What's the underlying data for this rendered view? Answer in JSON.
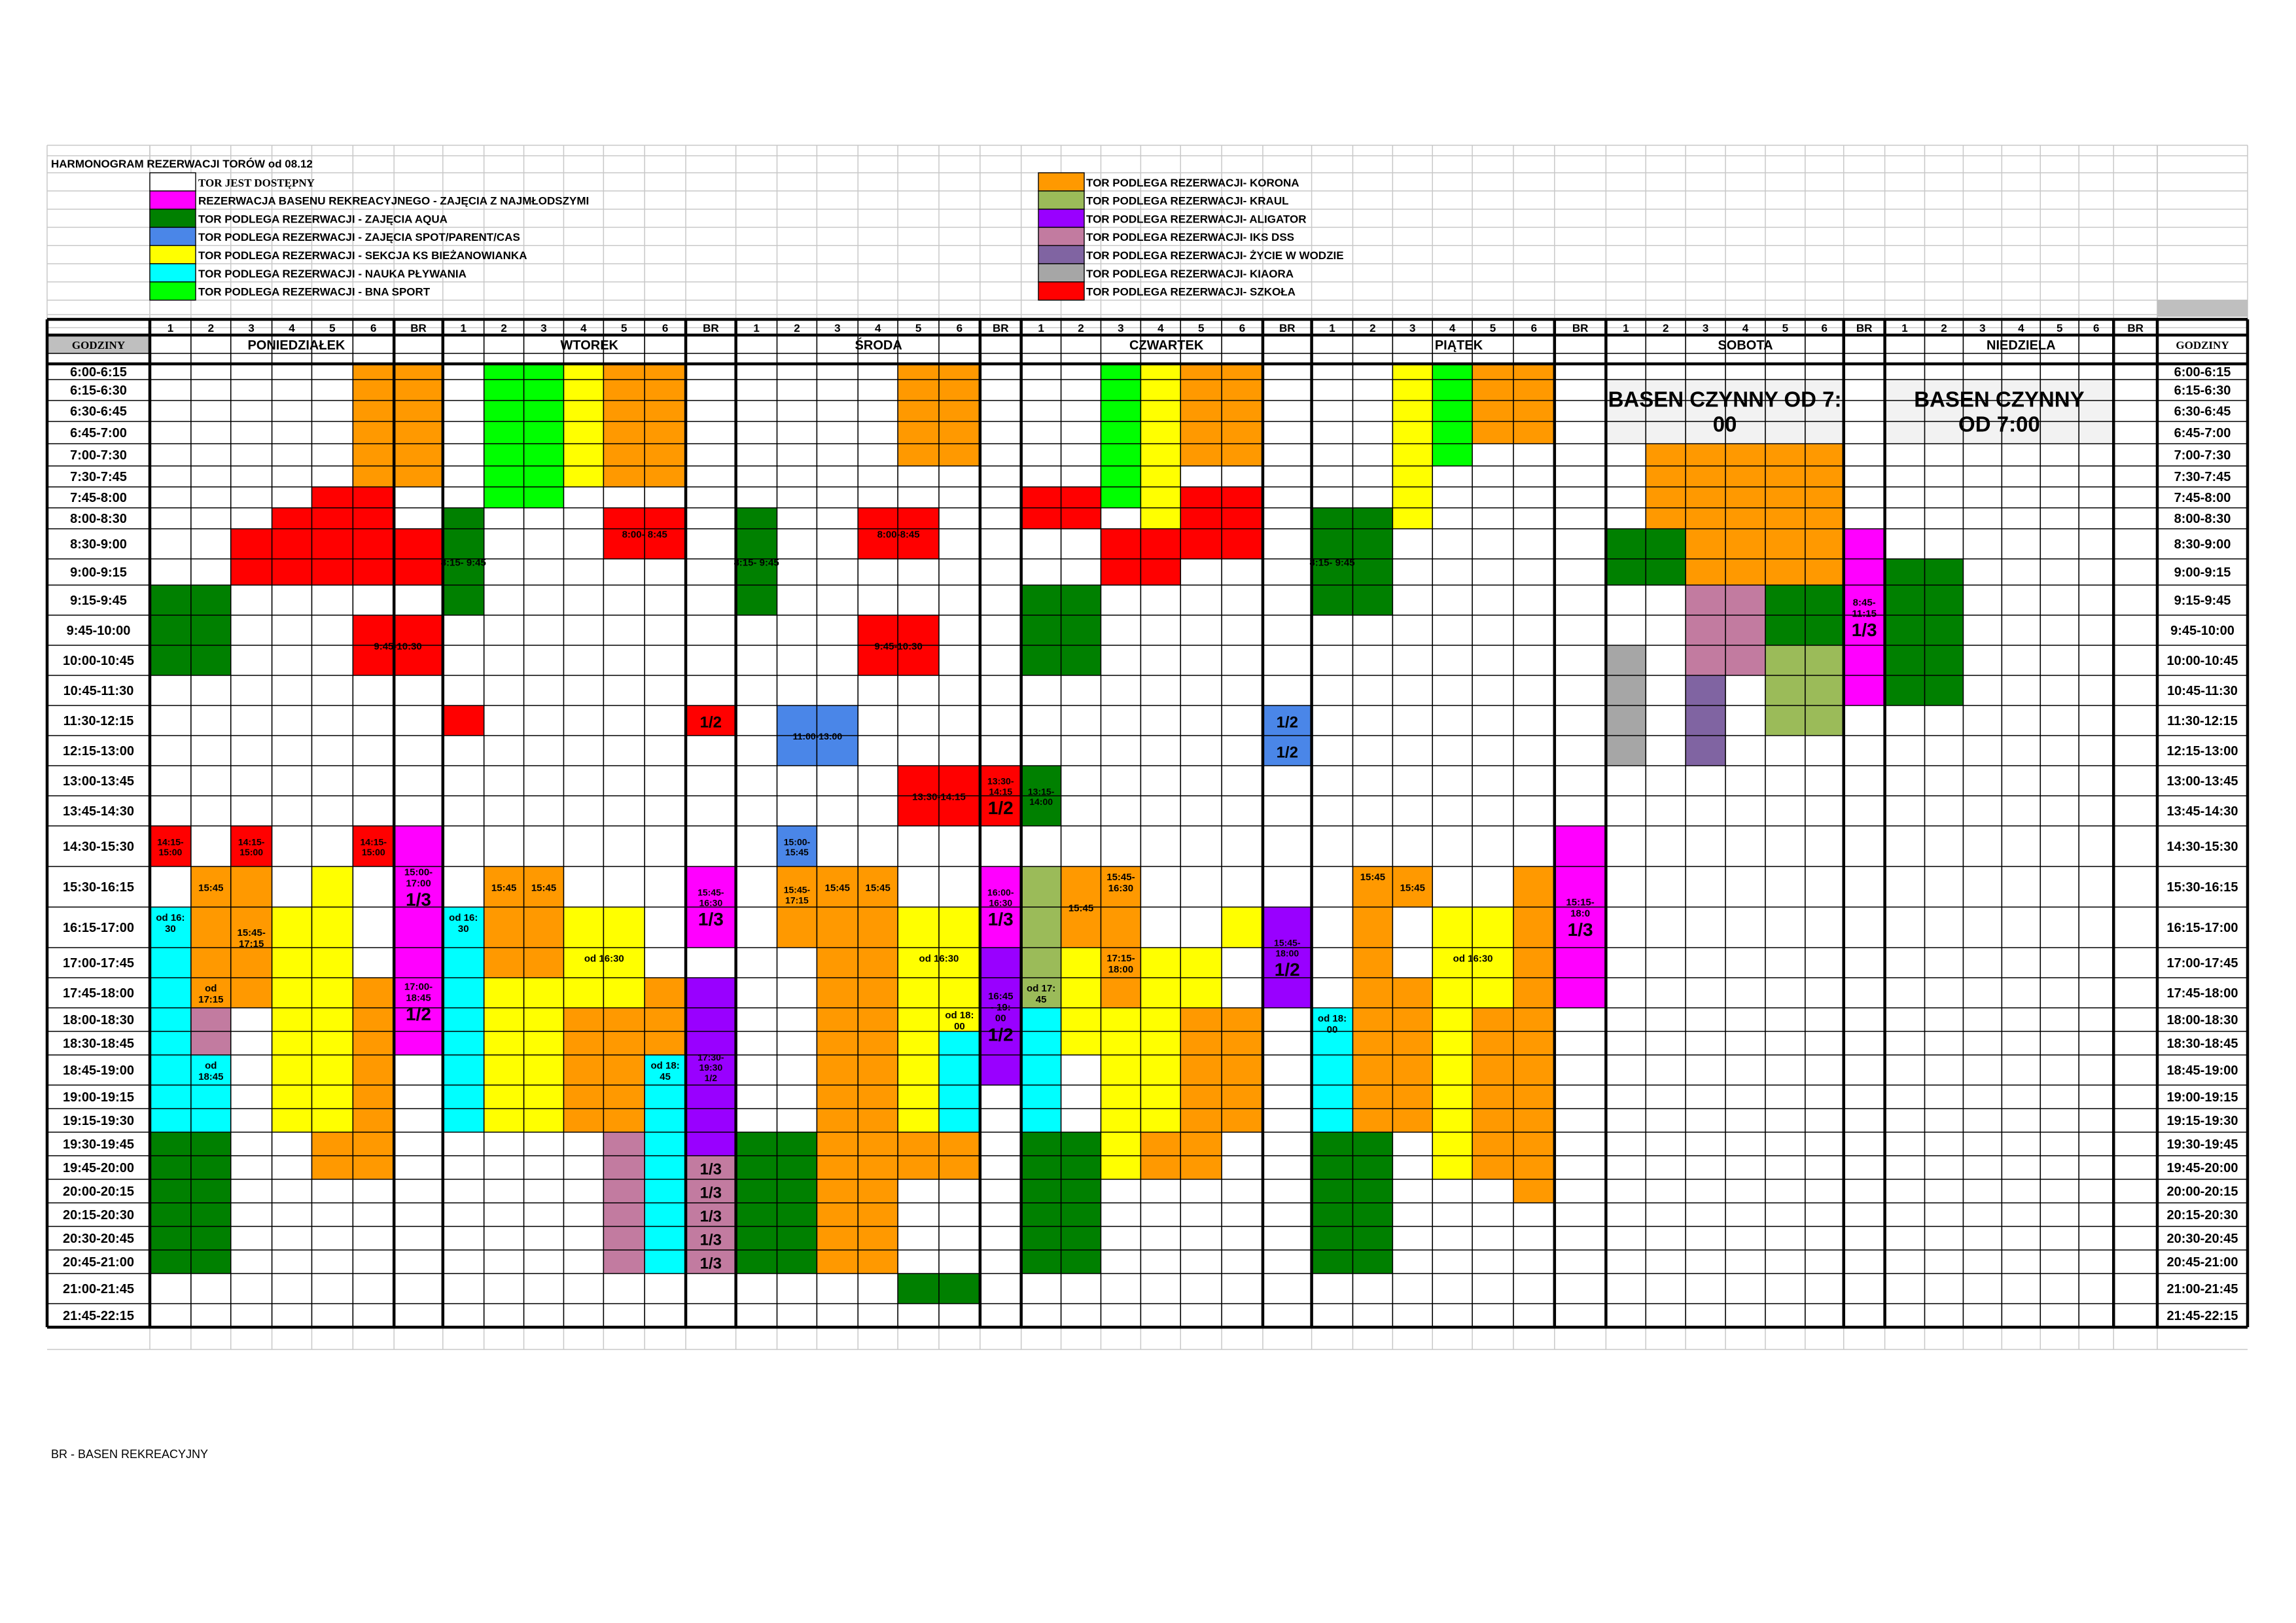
{
  "title": "HARMONOGRAM REZERWACJI TORÓW od 08.12",
  "colors": {
    "orange": "#FF9900",
    "green": "#008000",
    "lime": "#00FF00",
    "yellow": "#FFFF00",
    "cyan": "#00FFFF",
    "red": "#FF0000",
    "magenta": "#FF00FF",
    "blue": "#4A86E8",
    "olive": "#9BBB59",
    "purple": "#9900FF",
    "mauve": "#C27BA0",
    "violet": "#8064A2",
    "gray": "#A6A6A6",
    "pale": "#F2F2F2"
  },
  "legend": [
    {
      "color": "white",
      "label": "TOR JEST DOSTĘPNY",
      "serif": true
    },
    {
      "color": "magenta",
      "label": "REZERWACJA  BASENU REKREACYJNEGO - ZAJĘCIA Z NAJMŁODSZYMI"
    },
    {
      "color": "green",
      "label": "TOR PODLEGA REZERWACJI - ZAJĘCIA AQUA"
    },
    {
      "color": "blue",
      "label": "TOR PODLEGA REZERWACJI - ZAJĘCIA SPOT/PARENT/CAS"
    },
    {
      "color": "yellow",
      "label": "TOR PODLEGA REZERWACJI - SEKCJA KS BIEŻANOWIANKA"
    },
    {
      "color": "cyan",
      "label": " TOR PODLEGA REZERWACJI - NAUKA PŁYWANIA"
    },
    {
      "color": "lime",
      "label": " TOR PODLEGA REZERWACJI - BNA SPORT"
    },
    {
      "color": "orange",
      "label": "TOR PODLEGA REZERWACJI- KORONA"
    },
    {
      "color": "olive",
      "label": "TOR PODLEGA REZERWACJI- KRAUL"
    },
    {
      "color": "purple",
      "label": "TOR PODLEGA REZERWACJI- ALIGATOR"
    },
    {
      "color": "mauve",
      "label": "TOR PODLEGA REZERWACJI- IKS DSS"
    },
    {
      "color": "violet",
      "label": "TOR PODLEGA REZERWACJI- ŻYCIE W WODZIE"
    },
    {
      "color": "gray",
      "label": "TOR PODLEGA REZERWACJI- KIAORA"
    },
    {
      "color": "red",
      "label": "TOR PODLEGA REZERWACJI- SZKOŁA"
    }
  ],
  "lane_labels": [
    "1",
    "2",
    "3",
    "4",
    "5",
    "6",
    "BR"
  ],
  "godziny_label": "GODZINY",
  "days": [
    "PONIEDZIAŁEK",
    "WTOREK",
    "ŚRODA",
    "CZWARTEK",
    "PIĄTEK",
    "SOBOTA",
    "NIEDZIELA"
  ],
  "times": [
    "6:00-6:15",
    "6:15-6:30",
    "6:30-6:45",
    "6:45-7:00",
    "7:00-7:30",
    "7:30-7:45",
    "7:45-8:00",
    "8:00-8:30",
    "8:30-9:00",
    "9:00-9:15",
    "9:15-9:45",
    "9:45-10:00",
    "10:00-10:45",
    "10:45-11:30",
    "11:30-12:15",
    "12:15-13:00",
    "13:00-13:45",
    "13:45-14:30",
    "14:30-15:30",
    "15:30-16:15",
    "16:15-17:00",
    "17:00-17:45",
    "17:45-18:00",
    "18:00-18:30",
    "18:30-18:45",
    "18:45-19:00",
    "19:00-19:15",
    "19:15-19:30",
    "19:30-19:45",
    "19:45-20:00",
    "20:00-20:15",
    "20:15-20:30",
    "20:30-20:45",
    "20:45-21:00",
    "21:00-21:45",
    "21:45-22:15"
  ],
  "weekend_notes": [
    "BASEN CZYNNY OD 7:\n00",
    "BASEN CZYNNY\nOD 7:00"
  ],
  "footer": "BR - BASEN REKREACYJNY",
  "blocks": [
    {
      "c": 6,
      "c2": 7,
      "r": 0,
      "r2": 5,
      "color": "orange"
    },
    {
      "c": 5,
      "c2": 6,
      "r": 6,
      "r2": 8,
      "color": "red"
    },
    {
      "c": 4,
      "c2": 4,
      "r": 7,
      "r2": 8,
      "color": "red"
    },
    {
      "c": 3,
      "c2": 3,
      "r": 8,
      "r2": 9,
      "color": "red"
    },
    {
      "c": 4,
      "c2": 4,
      "r": 8,
      "r2": 9,
      "color": "red"
    },
    {
      "c": 5,
      "c2": 6,
      "r": 8,
      "r2": 9,
      "color": "red"
    },
    {
      "c": 7,
      "c2": 7,
      "r": 8,
      "r2": 9,
      "color": "red"
    },
    {
      "c": 1,
      "c2": 2,
      "r": 10,
      "r2": 12,
      "color": "green"
    },
    {
      "c": 6,
      "c2": 7,
      "r": 11,
      "r2": 12,
      "color": "red",
      "text": "9:45-10:30",
      "fs": 15
    },
    {
      "c": 1,
      "c2": 1,
      "r": 18,
      "r2": 18,
      "color": "red",
      "text": "14:15-\n15:00",
      "fs": 14
    },
    {
      "c": 3,
      "c2": 3,
      "r": 18,
      "r2": 18,
      "color": "red",
      "text": "14:15-\n15:00",
      "fs": 14
    },
    {
      "c": 6,
      "c2": 6,
      "r": 18,
      "r2": 18,
      "color": "red",
      "text": "14:15-\n15:00",
      "fs": 14
    },
    {
      "c": 7,
      "c2": 7,
      "r": 18,
      "r2": 20,
      "color": "magenta",
      "text": "15:00-\n17:00\n1/3",
      "fs": 15,
      "big": true
    },
    {
      "c": 2,
      "c2": 2,
      "r": 19,
      "r2": 19,
      "color": "orange",
      "text": "15:45",
      "fs": 15
    },
    {
      "c": 3,
      "c2": 3,
      "r": 19,
      "r2": 22,
      "color": "orange",
      "text": "15:45-\n17:15",
      "fs": 15
    },
    {
      "c": 4,
      "c2": 4,
      "r": 20,
      "r2": 27,
      "color": "yellow"
    },
    {
      "c": 5,
      "c2": 5,
      "r": 19,
      "r2": 27,
      "color": "yellow"
    },
    {
      "c": 6,
      "c2": 6,
      "r": 22,
      "r2": 27,
      "color": "orange"
    },
    {
      "c": 1,
      "c2": 1,
      "r": 20,
      "r2": 27,
      "color": "cyan",
      "text": "od 16:\n30",
      "fs": 15,
      "valign": "top"
    },
    {
      "c": 2,
      "c2": 2,
      "r": 20,
      "r2": 21,
      "color": "orange"
    },
    {
      "c": 2,
      "c2": 2,
      "r": 22,
      "r2": 22,
      "color": "orange",
      "text": "od\n17:15",
      "fs": 15
    },
    {
      "c": 2,
      "c2": 2,
      "r": 23,
      "r2": 24,
      "color": "mauve"
    },
    {
      "c": 2,
      "c2": 2,
      "r": 25,
      "r2": 27,
      "color": "cyan",
      "text": "od\n18:45",
      "fs": 15,
      "valign": "top"
    },
    {
      "c": 7,
      "c2": 7,
      "r": 21,
      "r2": 24,
      "color": "magenta",
      "text": "17:00-\n18:45\n1/2",
      "fs": 15,
      "big": true
    },
    {
      "c": 1,
      "c2": 2,
      "r": 28,
      "r2": 33,
      "color": "green"
    },
    {
      "c": 5,
      "c2": 6,
      "r": 28,
      "r2": 29,
      "color": "orange"
    },
    {
      "c": 9,
      "c2": 10,
      "r": 0,
      "r2": 6,
      "color": "lime"
    },
    {
      "c": 11,
      "c2": 11,
      "r": 0,
      "r2": 5,
      "color": "yellow"
    },
    {
      "c": 12,
      "c2": 13,
      "r": 0,
      "r2": 5,
      "color": "orange"
    },
    {
      "c": 8,
      "c2": 8,
      "r": 7,
      "r2": 10,
      "color": "green",
      "text": "8:15- 9:45",
      "fs": 15,
      "spill": true
    },
    {
      "c": 12,
      "c2": 13,
      "r": 7,
      "r2": 8,
      "color": "red",
      "text": "8:00- 8:45",
      "fs": 15
    },
    {
      "c": 8,
      "c2": 8,
      "r": 14,
      "r2": 14,
      "color": "red"
    },
    {
      "c": 8,
      "c2": 8,
      "r": 20,
      "r2": 27,
      "color": "cyan",
      "text": "od 16:\n30",
      "fs": 15,
      "valign": "top"
    },
    {
      "c": 9,
      "c2": 9,
      "r": 19,
      "r2": 19,
      "color": "orange",
      "text": "15:45",
      "fs": 15
    },
    {
      "c": 10,
      "c2": 10,
      "r": 19,
      "r2": 19,
      "color": "orange",
      "text": "15:45",
      "fs": 15
    },
    {
      "c": 9,
      "c2": 10,
      "r": 20,
      "r2": 21,
      "color": "orange"
    },
    {
      "c": 9,
      "c2": 10,
      "r": 22,
      "r2": 27,
      "color": "yellow"
    },
    {
      "c": 11,
      "c2": 12,
      "r": 20,
      "r2": 22,
      "color": "yellow",
      "text": "od 16:30",
      "fs": 15
    },
    {
      "c": 11,
      "c2": 12,
      "r": 23,
      "r2": 27,
      "color": "orange"
    },
    {
      "c": 13,
      "c2": 13,
      "r": 22,
      "r2": 24,
      "color": "orange"
    },
    {
      "c": 13,
      "c2": 13,
      "r": 25,
      "r2": 27,
      "color": "cyan",
      "text": "od 18:\n45",
      "fs": 15,
      "valign": "top"
    },
    {
      "c": 12,
      "c2": 12,
      "r": 28,
      "r2": 33,
      "color": "mauve"
    },
    {
      "c": 13,
      "c2": 13,
      "r": 28,
      "r2": 33,
      "color": "cyan"
    },
    {
      "c": 14,
      "c2": 14,
      "r": 14,
      "r2": 14,
      "color": "red",
      "text": "1/2",
      "fs": 24
    },
    {
      "c": 14,
      "c2": 14,
      "r": 19,
      "r2": 20,
      "color": "magenta",
      "text": "15:45-\n16:30\n1/3",
      "fs": 14,
      "big": true
    },
    {
      "c": 14,
      "c2": 14,
      "r": 22,
      "r2": 28,
      "color": "purple",
      "text": "17:30-\n19:30\n1/2",
      "fs": 14
    },
    {
      "c": 14,
      "c2": 14,
      "r": 29,
      "r2": 29,
      "color": "mauve",
      "text": "1/3",
      "fs": 24
    },
    {
      "c": 14,
      "c2": 14,
      "r": 30,
      "r2": 30,
      "color": "mauve",
      "text": "1/3",
      "fs": 24
    },
    {
      "c": 14,
      "c2": 14,
      "r": 31,
      "r2": 31,
      "color": "mauve",
      "text": "1/3",
      "fs": 24
    },
    {
      "c": 14,
      "c2": 14,
      "r": 32,
      "r2": 32,
      "color": "mauve",
      "text": "1/3",
      "fs": 24
    },
    {
      "c": 14,
      "c2": 14,
      "r": 33,
      "r2": 33,
      "color": "mauve",
      "text": "1/3",
      "fs": 24
    },
    {
      "c": 15,
      "c2": 15,
      "r": 7,
      "r2": 10,
      "color": "green",
      "text": "8:15- 9:45",
      "fs": 15,
      "spill": true
    },
    {
      "c": 16,
      "c2": 17,
      "r": 14,
      "r2": 15,
      "color": "blue",
      "text": "11:00-13:00",
      "fs": 14
    },
    {
      "c": 18,
      "c2": 19,
      "r": 7,
      "r2": 8,
      "color": "red",
      "text": "8:00-8:45",
      "fs": 15
    },
    {
      "c": 18,
      "c2": 19,
      "r": 11,
      "r2": 12,
      "color": "red",
      "text": "9:45-10:30",
      "fs": 15
    },
    {
      "c": 19,
      "c2": 20,
      "r": 0,
      "r2": 4,
      "color": "orange"
    },
    {
      "c": 19,
      "c2": 20,
      "r": 16,
      "r2": 17,
      "color": "red",
      "text": "13:30-14:15",
      "fs": 15
    },
    {
      "c": 16,
      "c2": 16,
      "r": 18,
      "r2": 18,
      "color": "blue",
      "text": "15:00-\n15:45",
      "fs": 14
    },
    {
      "c": 16,
      "c2": 16,
      "r": 19,
      "r2": 19,
      "color": "orange",
      "text": "15:45-\n17:15",
      "fs": 14,
      "valign": "bottom"
    },
    {
      "c": 16,
      "c2": 16,
      "r": 20,
      "r2": 20,
      "color": "orange"
    },
    {
      "c": 17,
      "c2": 17,
      "r": 19,
      "r2": 19,
      "color": "orange",
      "text": "15:45",
      "fs": 15
    },
    {
      "c": 18,
      "c2": 18,
      "r": 19,
      "r2": 19,
      "color": "orange",
      "text": "15:45",
      "fs": 15
    },
    {
      "c": 17,
      "c2": 18,
      "r": 20,
      "r2": 33,
      "color": "orange"
    },
    {
      "c": 19,
      "c2": 20,
      "r": 20,
      "r2": 22,
      "color": "yellow",
      "text": "od 16:30",
      "fs": 15
    },
    {
      "c": 19,
      "c2": 19,
      "r": 23,
      "r2": 27,
      "color": "yellow"
    },
    {
      "c": 20,
      "c2": 20,
      "r": 23,
      "r2": 27,
      "color": "yellow"
    },
    {
      "c": 20,
      "c2": 20,
      "r": 23,
      "r2": 23,
      "color": "yellow",
      "text": "od 18:\n00",
      "fs": 15
    },
    {
      "c": 20,
      "c2": 20,
      "r": 24,
      "r2": 27,
      "color": "cyan"
    },
    {
      "c": 15,
      "c2": 16,
      "r": 28,
      "r2": 33,
      "color": "green"
    },
    {
      "c": 19,
      "c2": 20,
      "r": 28,
      "r2": 29,
      "color": "orange"
    },
    {
      "c": 19,
      "c2": 20,
      "r": 34,
      "r2": 34,
      "color": "green"
    },
    {
      "c": 21,
      "c2": 21,
      "r": 16,
      "r2": 17,
      "color": "red",
      "text": "13:30-\n14:15\n1/2",
      "fs": 14,
      "big": true
    },
    {
      "c": 21,
      "c2": 21,
      "r": 19,
      "r2": 20,
      "color": "magenta",
      "text": "16:00-\n16:30\n1/3",
      "fs": 14,
      "big": true
    },
    {
      "c": 21,
      "c2": 21,
      "r": 21,
      "r2": 25,
      "color": "purple",
      "text": "16:45\n- 19:\n00\n1/2",
      "fs": 15,
      "big": true
    },
    {
      "c": 22,
      "c2": 22,
      "r": 16,
      "r2": 17,
      "color": "green",
      "text": "13:15-\n14:00",
      "fs": 14
    },
    {
      "c": 22,
      "c2": 22,
      "r": 6,
      "r2": 7,
      "color": "red"
    },
    {
      "c": 23,
      "c2": 23,
      "r": 6,
      "r2": 7,
      "color": "red"
    },
    {
      "c": 22,
      "c2": 23,
      "r": 10,
      "r2": 12,
      "color": "green"
    },
    {
      "c": 24,
      "c2": 24,
      "r": 0,
      "r2": 6,
      "color": "lime"
    },
    {
      "c": 25,
      "c2": 25,
      "r": 0,
      "r2": 7,
      "color": "yellow"
    },
    {
      "c": 26,
      "c2": 27,
      "r": 0,
      "r2": 4,
      "color": "orange"
    },
    {
      "c": 26,
      "c2": 27,
      "r": 6,
      "r2": 8,
      "color": "red"
    },
    {
      "c": 24,
      "c2": 25,
      "r": 8,
      "r2": 9,
      "color": "red"
    },
    {
      "c": 22,
      "c2": 22,
      "r": 19,
      "r2": 22,
      "color": "olive"
    },
    {
      "c": 22,
      "c2": 22,
      "r": 22,
      "r2": 22,
      "color": "olive",
      "text": "od 17:\n45",
      "fs": 15
    },
    {
      "c": 22,
      "c2": 22,
      "r": 23,
      "r2": 27,
      "color": "cyan"
    },
    {
      "c": 23,
      "c2": 23,
      "r": 19,
      "r2": 20,
      "color": "orange",
      "text": "15:45",
      "fs": 15
    },
    {
      "c": 24,
      "c2": 24,
      "r": 19,
      "r2": 20,
      "color": "orange",
      "text": "15:45-\n16:30",
      "fs": 15,
      "valign": "top"
    },
    {
      "c": 23,
      "c2": 23,
      "r": 21,
      "r2": 24,
      "color": "yellow"
    },
    {
      "c": 24,
      "c2": 24,
      "r": 21,
      "r2": 24,
      "color": "orange",
      "text": "17:15-\n18:00",
      "fs": 15,
      "valign": "top"
    },
    {
      "c": 25,
      "c2": 26,
      "r": 21,
      "r2": 22,
      "color": "yellow"
    },
    {
      "c": 27,
      "c2": 27,
      "r": 20,
      "r2": 20,
      "color": "yellow"
    },
    {
      "c": 24,
      "c2": 25,
      "r": 23,
      "r2": 29,
      "color": "yellow"
    },
    {
      "c": 26,
      "c2": 27,
      "r": 23,
      "r2": 27,
      "color": "orange"
    },
    {
      "c": 22,
      "c2": 23,
      "r": 28,
      "r2": 33,
      "color": "green"
    },
    {
      "c": 25,
      "c2": 26,
      "r": 28,
      "r2": 29,
      "color": "orange"
    },
    {
      "c": 28,
      "c2": 28,
      "r": 14,
      "r2": 14,
      "color": "blue",
      "text": "1/2",
      "fs": 24
    },
    {
      "c": 28,
      "c2": 28,
      "r": 15,
      "r2": 15,
      "color": "blue",
      "text": "1/2",
      "fs": 24
    },
    {
      "c": 28,
      "c2": 28,
      "r": 20,
      "r2": 22,
      "color": "purple",
      "text": "15:45-\n18:00\n1/2",
      "fs": 14,
      "big": true
    },
    {
      "c": 29,
      "c2": 29,
      "r": 7,
      "r2": 10,
      "color": "green",
      "text": "8:15- 9:45",
      "fs": 15,
      "spill": true
    },
    {
      "c": 30,
      "c2": 30,
      "r": 7,
      "r2": 10,
      "color": "green"
    },
    {
      "c": 31,
      "c2": 31,
      "r": 0,
      "r2": 7,
      "color": "yellow"
    },
    {
      "c": 32,
      "c2": 32,
      "r": 0,
      "r2": 4,
      "color": "lime"
    },
    {
      "c": 33,
      "c2": 34,
      "r": 0,
      "r2": 3,
      "color": "orange"
    },
    {
      "c": 29,
      "c2": 29,
      "r": 23,
      "r2": 27,
      "color": "cyan",
      "text": "od 18:\n00",
      "fs": 15,
      "valign": "top"
    },
    {
      "c": 30,
      "c2": 30,
      "r": 19,
      "r2": 21,
      "color": "orange",
      "text": "15:45",
      "fs": 15,
      "valign": "top"
    },
    {
      "c": 31,
      "c2": 31,
      "r": 19,
      "r2": 19,
      "color": "orange",
      "text": "15:45",
      "fs": 15
    },
    {
      "c": 30,
      "c2": 31,
      "r": 22,
      "r2": 27,
      "color": "orange"
    },
    {
      "c": 32,
      "c2": 33,
      "r": 20,
      "r2": 22,
      "color": "yellow",
      "text": "od 16:30",
      "fs": 15
    },
    {
      "c": 32,
      "c2": 32,
      "r": 23,
      "r2": 29,
      "color": "yellow"
    },
    {
      "c": 33,
      "c2": 33,
      "r": 23,
      "r2": 29,
      "color": "orange"
    },
    {
      "c": 34,
      "c2": 34,
      "r": 19,
      "r2": 27,
      "color": "orange"
    },
    {
      "c": 29,
      "c2": 30,
      "r": 28,
      "r2": 33,
      "color": "green"
    },
    {
      "c": 34,
      "c2": 34,
      "r": 28,
      "r2": 30,
      "color": "orange"
    },
    {
      "c": 35,
      "c2": 35,
      "r": 18,
      "r2": 22,
      "color": "magenta",
      "text": "15:15-\n18:0\n1/3",
      "fs": 15,
      "big": true
    },
    {
      "c": 37,
      "c2": 38,
      "r": 4,
      "r2": 7,
      "color": "orange"
    },
    {
      "c": 38,
      "c2": 41,
      "r": 4,
      "r2": 7,
      "color": "orange"
    },
    {
      "c": 36,
      "c2": 37,
      "r": 8,
      "r2": 9,
      "color": "green"
    },
    {
      "c": 38,
      "c2": 41,
      "r": 8,
      "r2": 9,
      "color": "orange"
    },
    {
      "c": 38,
      "c2": 39,
      "r": 10,
      "r2": 12,
      "color": "mauve"
    },
    {
      "c": 40,
      "c2": 41,
      "r": 10,
      "r2": 11,
      "color": "green"
    },
    {
      "c": 40,
      "c2": 41,
      "r": 12,
      "r2": 14,
      "color": "olive"
    },
    {
      "c": 36,
      "c2": 36,
      "r": 12,
      "r2": 15,
      "color": "gray"
    },
    {
      "c": 38,
      "c2": 38,
      "r": 13,
      "r2": 15,
      "color": "violet"
    },
    {
      "c": 42,
      "c2": 42,
      "r": 8,
      "r2": 13,
      "color": "magenta",
      "text": "8:45-\n11:15\n1/3",
      "fs": 15,
      "big": true
    },
    {
      "c": 43,
      "c2": 44,
      "r": 9,
      "r2": 13,
      "color": "green"
    }
  ]
}
